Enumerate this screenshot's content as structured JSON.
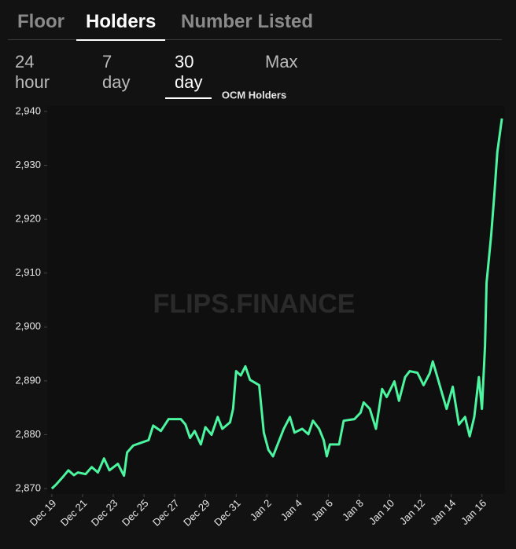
{
  "tabs": [
    "Floor",
    "Holders",
    "Number Listed"
  ],
  "periods": [
    "24 hour",
    "7 day",
    "30 day",
    "Max"
  ],
  "chart_data": {
    "type": "line",
    "title": "OCM Holders",
    "watermark": "FLIPS.FINANCE",
    "x": [
      0,
      0.26,
      0.67,
      1.08,
      1.44,
      1.7,
      2.2,
      2.6,
      3.0,
      3.4,
      3.75,
      4.3,
      4.7,
      4.9,
      5.3,
      5.8,
      6.3,
      6.6,
      7.1,
      7.6,
      8.4,
      8.7,
      9.0,
      9.3,
      9.7,
      10.0,
      10.4,
      10.8,
      11.1,
      11.6,
      11.8,
      12.0,
      12.3,
      12.6,
      12.9,
      13.5,
      13.8,
      14.1,
      14.4,
      14.7,
      15.1,
      15.5,
      15.8,
      16.3,
      16.7,
      17.0,
      17.4,
      17.7,
      17.9,
      18.1,
      18.7,
      19.0,
      19.7,
      20.1,
      20.3,
      20.7,
      21.1,
      21.5,
      21.8,
      22.3,
      22.6,
      23.0,
      23.3,
      23.8,
      24.2,
      24.6,
      24.8,
      25.1,
      25.4,
      25.7,
      26.1,
      26.5,
      26.9,
      27.2,
      27.5,
      27.8,
      28.0,
      28.2,
      28.3,
      28.6,
      28.8,
      29.0,
      29.3
    ],
    "series": [
      {
        "name": "Holders",
        "color": "#4cf5a0",
        "values": [
          2870,
          2870.7,
          2872,
          2873.4,
          2872.5,
          2873,
          2872.7,
          2874,
          2873,
          2875.6,
          2873.4,
          2874.6,
          2872.4,
          2876.7,
          2878,
          2878.5,
          2879,
          2881.7,
          2880.7,
          2882.9,
          2882.9,
          2881.9,
          2879.4,
          2880.7,
          2878.2,
          2881.4,
          2880,
          2883.3,
          2881.1,
          2882.3,
          2884.8,
          2891.8,
          2891,
          2892.7,
          2890.2,
          2889.2,
          2880.4,
          2877.2,
          2876,
          2878.2,
          2881.1,
          2883.3,
          2880.4,
          2881.1,
          2880.1,
          2882.6,
          2881.1,
          2879,
          2876,
          2878.2,
          2878.2,
          2882.6,
          2882.9,
          2884.1,
          2886,
          2884.8,
          2881.1,
          2888.5,
          2887,
          2889.9,
          2886.3,
          2890.7,
          2891.8,
          2891.5,
          2889.2,
          2891.4,
          2893.6,
          2890.7,
          2887.7,
          2884.8,
          2888.9,
          2881.9,
          2883.3,
          2879.7,
          2883.3,
          2890.7,
          2884.8,
          2896.5,
          2908.2,
          2917,
          2924.3,
          2932.4,
          2938.7
        ]
      }
    ],
    "xlim": [
      -0.3,
      29.5
    ],
    "xticks": [
      {
        "value": 0,
        "label": "Dec 19"
      },
      {
        "value": 2,
        "label": "Dec 21"
      },
      {
        "value": 4,
        "label": "Dec 23"
      },
      {
        "value": 6,
        "label": "Dec 25"
      },
      {
        "value": 8,
        "label": "Dec 27"
      },
      {
        "value": 10,
        "label": "Dec 29"
      },
      {
        "value": 12,
        "label": "Dec 31"
      },
      {
        "value": 14,
        "label": "Jan 2"
      },
      {
        "value": 16,
        "label": "Jan 4"
      },
      {
        "value": 18,
        "label": "Jan 6"
      },
      {
        "value": 20,
        "label": "Jan 8"
      },
      {
        "value": 22,
        "label": "Jan 10"
      },
      {
        "value": 24,
        "label": "Jan 12"
      },
      {
        "value": 26,
        "label": "Jan 14"
      },
      {
        "value": 28,
        "label": "Jan 16"
      }
    ],
    "ylim": [
      2869,
      2941
    ],
    "yticks": [
      {
        "value": 2870,
        "label": "2,870"
      },
      {
        "value": 2880,
        "label": "2,880"
      },
      {
        "value": 2890,
        "label": "2,890"
      },
      {
        "value": 2900,
        "label": "2,900"
      },
      {
        "value": 2910,
        "label": "2,910"
      },
      {
        "value": 2920,
        "label": "2,920"
      },
      {
        "value": 2930,
        "label": "2,930"
      },
      {
        "value": 2940,
        "label": "2,940"
      }
    ],
    "grid": false
  }
}
